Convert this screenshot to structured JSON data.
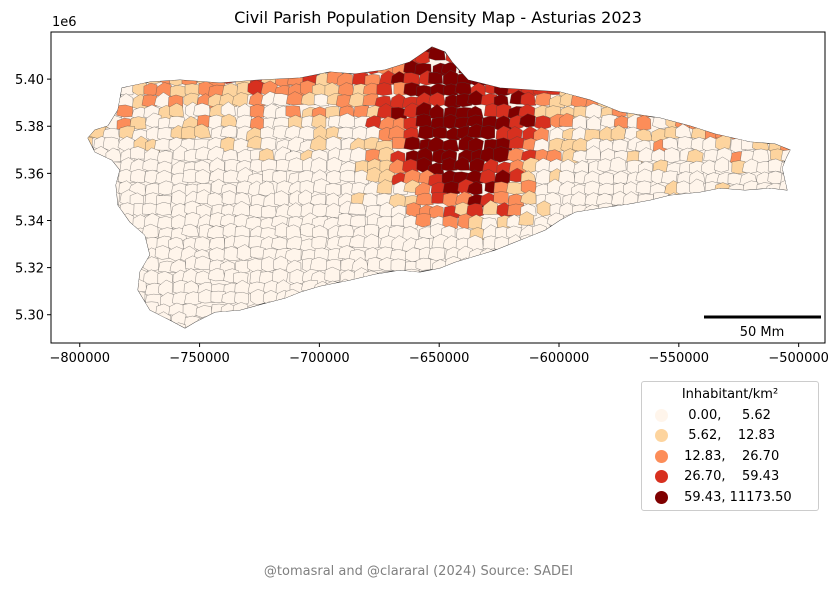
{
  "title": "Civil Parish Population Density Map - Asturias 2023",
  "axes": {
    "y_multiplier": "1e6",
    "x_ticks": [
      "−800000",
      "−750000",
      "−700000",
      "−650000",
      "−600000",
      "−550000",
      "−500000"
    ],
    "y_ticks": [
      "5.30",
      "5.32",
      "5.34",
      "5.36",
      "5.38",
      "5.40"
    ]
  },
  "scale_bar": {
    "label": "50 Mm"
  },
  "legend": {
    "title": "Inhabitant/km²",
    "classes": [
      {
        "label": "  0.00,     5.62",
        "color": "#fff5eb"
      },
      {
        "label": "  5.62,    12.83",
        "color": "#fdd49e"
      },
      {
        "label": " 12.83,    26.70",
        "color": "#fc8d59"
      },
      {
        "label": " 26.70,    59.43",
        "color": "#d7301f"
      },
      {
        "label": " 59.43, 11173.50",
        "color": "#7f0000"
      }
    ]
  },
  "credits": "@tomasral and @clararal (2024)   Source: SADEI",
  "chart_data": {
    "type": "choropleth",
    "title": "Civil Parish Population Density Map - Asturias 2023",
    "xlim": [
      -812000,
      -489000
    ],
    "ylim": [
      5.288,
      5.42
    ],
    "y_scale_note": "1e6",
    "x_ticks": [
      -800000,
      -750000,
      -700000,
      -650000,
      -600000,
      -550000,
      -500000
    ],
    "y_ticks": [
      5.3,
      5.32,
      5.34,
      5.36,
      5.38,
      5.4
    ],
    "legend_title": "Inhabitant/km²",
    "bins": [
      [
        0.0,
        5.62
      ],
      [
        5.62,
        12.83
      ],
      [
        12.83,
        26.7
      ],
      [
        26.7,
        59.43
      ],
      [
        59.43,
        11173.5
      ]
    ],
    "colors": [
      "#fff5eb",
      "#fdd49e",
      "#fc8d59",
      "#d7301f",
      "#7f0000"
    ],
    "scale_bar_label": "50 Mm"
  }
}
